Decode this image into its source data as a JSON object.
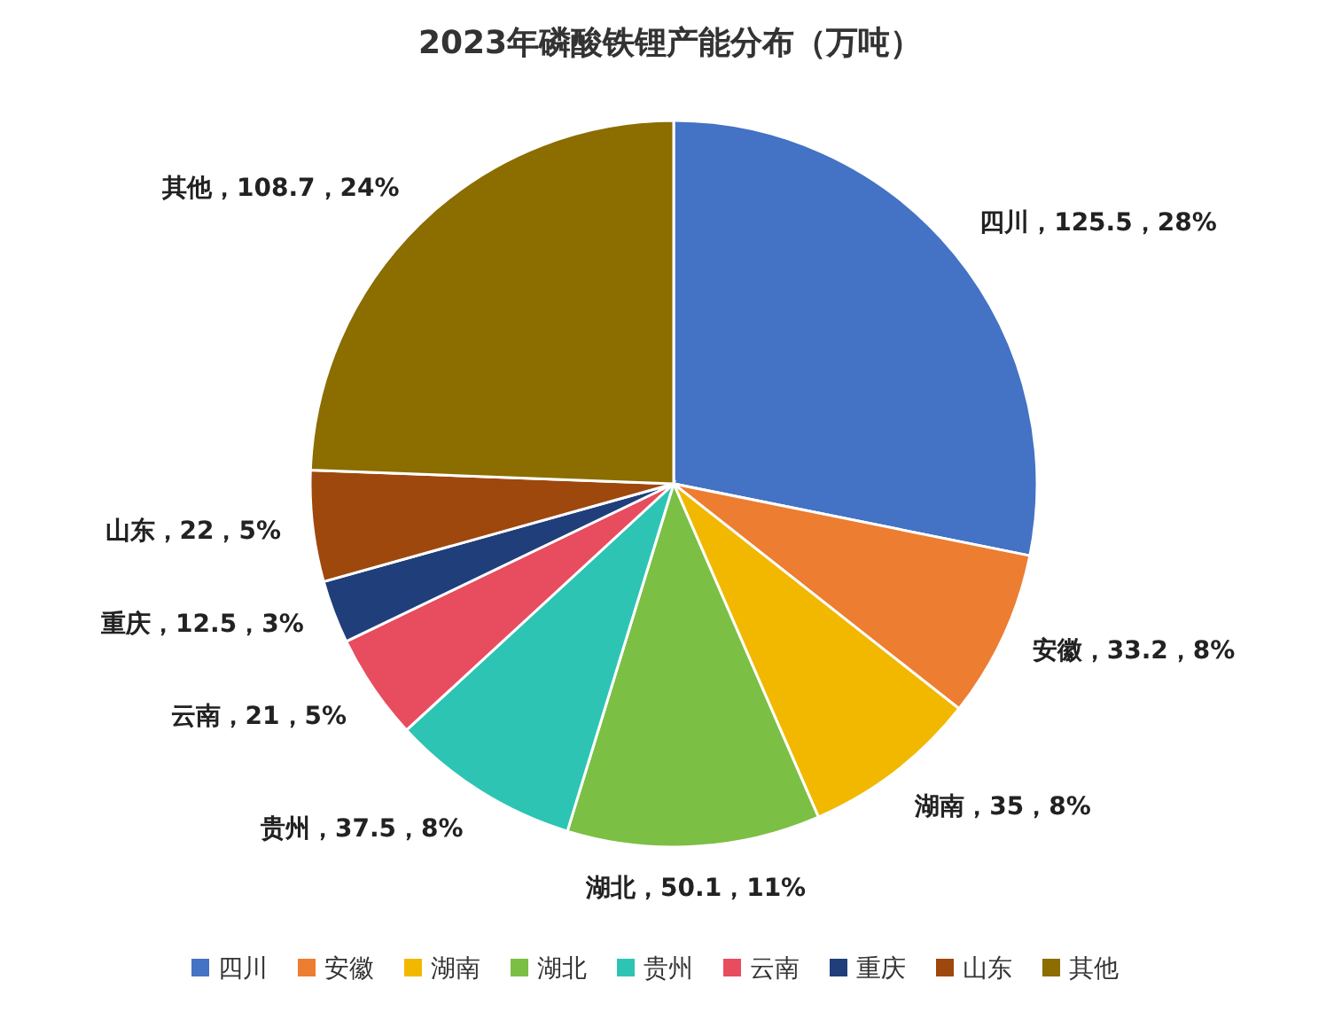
{
  "chart_data": {
    "type": "pie",
    "title": "2023年磷酸铁锂产能分布（万吨）",
    "categories": [
      "四川",
      "安徽",
      "湖南",
      "湖北",
      "贵州",
      "云南",
      "重庆",
      "山东",
      "其他"
    ],
    "values": [
      125.5,
      33.2,
      35,
      50.1,
      37.5,
      21,
      12.5,
      22,
      108.7
    ],
    "colors": [
      "#4472c4",
      "#ed7d31",
      "#f2b800",
      "#7bbf44",
      "#2ec4b4",
      "#e84c5f",
      "#203f7a",
      "#9e480e",
      "#8b6d00"
    ],
    "value_labels": [
      "四川，125.5，28%",
      "安徽，33.2，8%",
      "湖南，35，8%",
      "湖北，50.1，11%",
      "贵州，37.5，8%",
      "云南，21，5%",
      "重庆，12.5，3%",
      "山东，22，5%",
      "其他，108.7，24%"
    ],
    "legend": "bottom"
  }
}
